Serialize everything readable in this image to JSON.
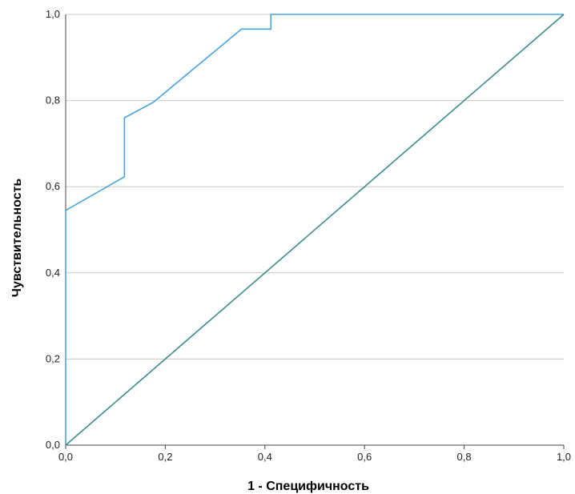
{
  "chart_data": {
    "type": "line",
    "title": "",
    "xlabel": "1 - Специфичность",
    "ylabel": "Чувствительность",
    "xlim": [
      0,
      1
    ],
    "ylim": [
      0,
      1
    ],
    "x_ticks": [
      "0,0",
      "0,2",
      "0,4",
      "0,6",
      "0,8",
      "1,0"
    ],
    "y_ticks": [
      "0,0",
      "0,2",
      "0,4",
      "0,6",
      "0,8",
      "1,0"
    ],
    "grid": "horizontal",
    "legend": "none",
    "series": [
      {
        "color": "#4aa3df",
        "points": [
          [
            0.0,
            0.0
          ],
          [
            0.0,
            0.545
          ],
          [
            0.118,
            0.623
          ],
          [
            0.118,
            0.76
          ],
          [
            0.176,
            0.796
          ],
          [
            0.353,
            0.966
          ],
          [
            0.412,
            0.966
          ],
          [
            0.412,
            1.0
          ],
          [
            1.0,
            1.0
          ]
        ]
      },
      {
        "color": "#3d8c8a",
        "points": [
          [
            0.0,
            0.0
          ],
          [
            1.0,
            1.0
          ]
        ]
      }
    ]
  }
}
